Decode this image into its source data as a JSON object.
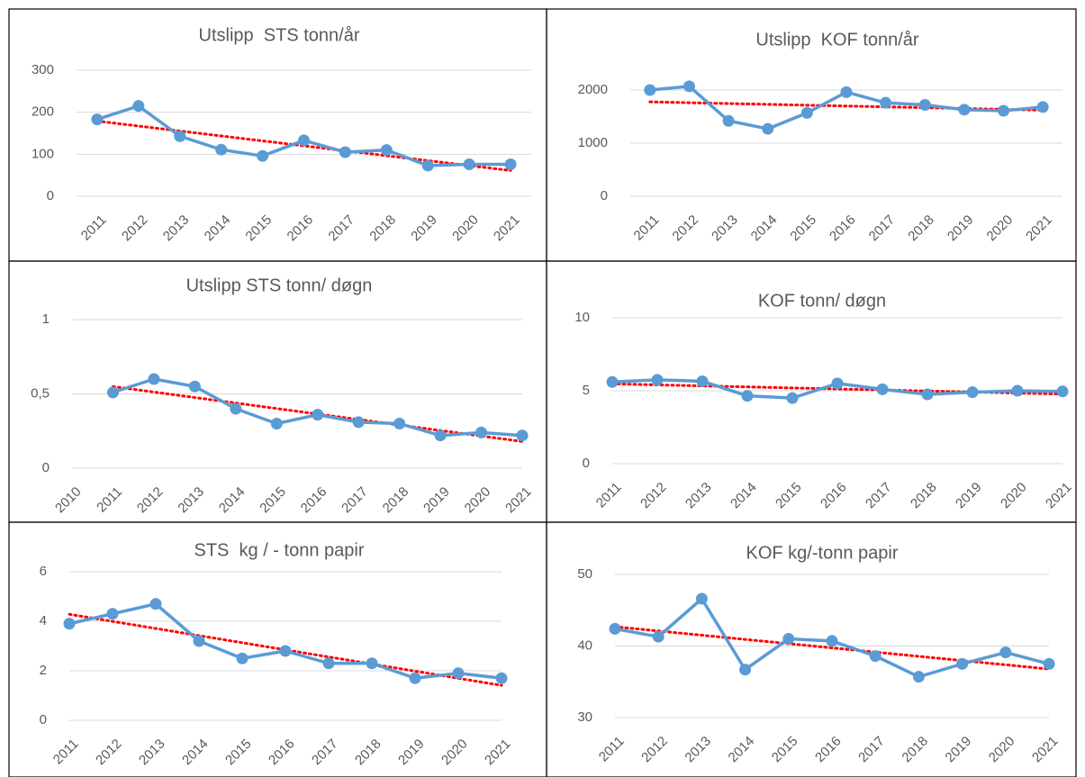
{
  "chart_data": [
    {
      "type": "line",
      "title": "Utslipp  STS tonn/år",
      "categories": [
        "2011",
        "2012",
        "2013",
        "2014",
        "2015",
        "2016",
        "2017",
        "2018",
        "2019",
        "2020",
        "2021"
      ],
      "series": [
        {
          "color": "#5b9bd5",
          "values": [
            183,
            215,
            143,
            111,
            96,
            133,
            105,
            110,
            73,
            76,
            76
          ]
        }
      ],
      "ylim": [
        0,
        300
      ],
      "yticks": [
        0,
        100,
        200,
        300
      ],
      "grid": true,
      "axis_between_categories": true,
      "trendline": {
        "color": "#ff0000",
        "style": "dotted"
      }
    },
    {
      "type": "line",
      "title": "Utslipp  KOF tonn/år",
      "categories": [
        "2011",
        "2012",
        "2013",
        "2014",
        "2015",
        "2016",
        "2017",
        "2018",
        "2019",
        "2020",
        "2021"
      ],
      "series": [
        {
          "color": "#5b9bd5",
          "values": [
            2000,
            2070,
            1420,
            1270,
            1570,
            1960,
            1760,
            1720,
            1630,
            1610,
            1680
          ]
        }
      ],
      "ylim": [
        0,
        2000
      ],
      "yticks": [
        0,
        1000,
        2000
      ],
      "grid": true,
      "axis_between_categories": true,
      "trendline": {
        "color": "#ff0000",
        "style": "dotted"
      }
    },
    {
      "type": "line",
      "title": "Utslipp STS tonn/ døgn",
      "categories": [
        "2010",
        "2011",
        "2012",
        "2013",
        "2014",
        "2015",
        "2016",
        "2017",
        "2018",
        "2019",
        "2020",
        "2021"
      ],
      "series": [
        {
          "color": "#5b9bd5",
          "values": [
            null,
            0.51,
            0.6,
            0.55,
            0.4,
            0.3,
            0.36,
            0.31,
            0.3,
            0.22,
            0.24,
            0.22
          ]
        }
      ],
      "ylim": [
        0,
        1
      ],
      "yticks": [
        0,
        {
          "value": 0.5,
          "label": "0,5"
        },
        1
      ],
      "grid": true,
      "axis_between_categories": false,
      "trendline": {
        "color": "#ff0000",
        "style": "dotted"
      }
    },
    {
      "type": "line",
      "title": "KOF tonn/ døgn",
      "categories": [
        "2011",
        "2012",
        "2013",
        "2014",
        "2015",
        "2016",
        "2017",
        "2018",
        "2019",
        "2020",
        "2021"
      ],
      "series": [
        {
          "color": "#5b9bd5",
          "values": [
            5.6,
            5.75,
            5.65,
            4.65,
            4.5,
            5.5,
            5.1,
            4.75,
            4.9,
            5.0,
            4.95
          ]
        }
      ],
      "ylim": [
        0,
        10
      ],
      "yticks": [
        0,
        5,
        10
      ],
      "grid": true,
      "axis_between_categories": false,
      "trendline": {
        "color": "#ff0000",
        "style": "dotted"
      }
    },
    {
      "type": "line",
      "title": "STS  kg / - tonn papir",
      "categories": [
        "2011",
        "2012",
        "2013",
        "2014",
        "2015",
        "2016",
        "2017",
        "2018",
        "2019",
        "2020",
        "2021"
      ],
      "series": [
        {
          "color": "#5b9bd5",
          "values": [
            3.9,
            4.3,
            4.7,
            3.2,
            2.5,
            2.8,
            2.3,
            2.3,
            1.7,
            1.9,
            1.7
          ]
        }
      ],
      "ylim": [
        0,
        6
      ],
      "yticks": [
        0,
        2,
        4,
        6
      ],
      "grid": true,
      "axis_between_categories": false,
      "trendline": {
        "color": "#ff0000",
        "style": "dotted"
      }
    },
    {
      "type": "line",
      "title": "KOF kg/-tonn papir",
      "categories": [
        "2011",
        "2012",
        "2013",
        "2014",
        "2015",
        "2016",
        "2017",
        "2018",
        "2019",
        "2020",
        "2021"
      ],
      "series": [
        {
          "color": "#5b9bd5",
          "values": [
            42.4,
            41.3,
            46.6,
            36.7,
            41.0,
            40.7,
            38.6,
            35.7,
            37.5,
            39.1,
            37.5
          ]
        }
      ],
      "ylim": [
        30,
        50
      ],
      "yticks": [
        30,
        40,
        50
      ],
      "grid": true,
      "axis_between_categories": false,
      "trendline": {
        "color": "#ff0000",
        "style": "dotted"
      }
    }
  ]
}
